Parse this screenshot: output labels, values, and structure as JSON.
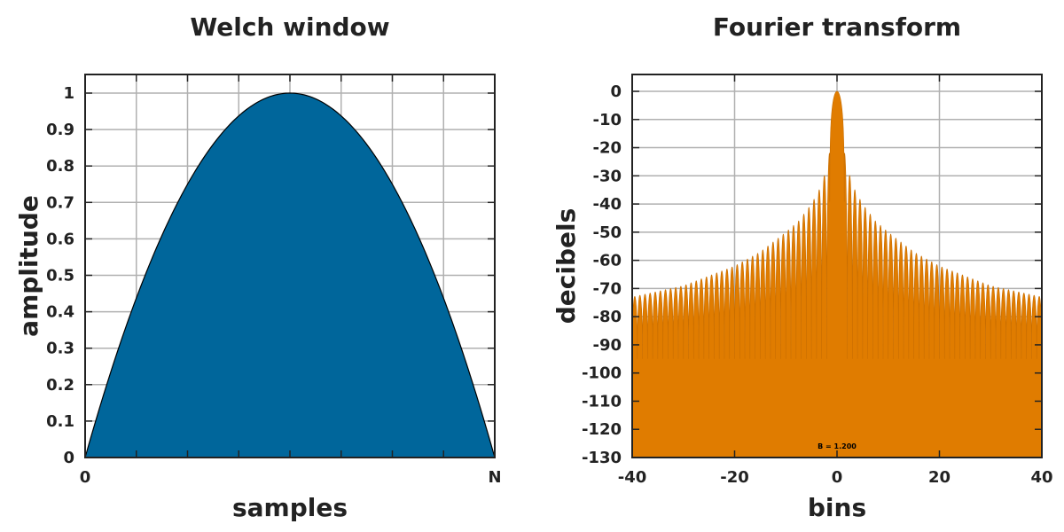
{
  "chart_data": [
    {
      "type": "area",
      "title": "Welch window",
      "xlabel": "samples",
      "ylabel": "amplitude",
      "x_range": [
        0,
        1
      ],
      "ylim": [
        0,
        1
      ],
      "grid": true,
      "x_ticks": [
        {
          "value": 0,
          "label": "0"
        },
        {
          "value": 1,
          "label": "N"
        }
      ],
      "y_ticks": [
        {
          "value": 0,
          "label": "0"
        },
        {
          "value": 0.1,
          "label": "0.1"
        },
        {
          "value": 0.2,
          "label": "0.2"
        },
        {
          "value": 0.3,
          "label": "0.3"
        },
        {
          "value": 0.4,
          "label": "0.4"
        },
        {
          "value": 0.5,
          "label": "0.5"
        },
        {
          "value": 0.6,
          "label": "0.6"
        },
        {
          "value": 0.7,
          "label": "0.7"
        },
        {
          "value": 0.8,
          "label": "0.8"
        },
        {
          "value": 0.9,
          "label": "0.9"
        },
        {
          "value": 1,
          "label": "1"
        }
      ],
      "series": [
        {
          "color": "#00669b",
          "x": [
            0,
            0.05,
            0.1,
            0.15,
            0.2,
            0.25,
            0.3,
            0.35,
            0.4,
            0.45,
            0.5,
            0.55,
            0.6,
            0.65,
            0.7,
            0.75,
            0.8,
            0.85,
            0.9,
            0.95,
            1
          ],
          "values": [
            0,
            0.19,
            0.36,
            0.51,
            0.64,
            0.75,
            0.84,
            0.91,
            0.96,
            0.99,
            1,
            0.99,
            0.96,
            0.91,
            0.84,
            0.75,
            0.64,
            0.51,
            0.36,
            0.19,
            0
          ]
        }
      ]
    },
    {
      "type": "area",
      "title": "Fourier transform",
      "xlabel": "bins",
      "ylabel": "decibels",
      "xlim": [
        -40,
        40
      ],
      "ylim": [
        -130,
        0
      ],
      "grid": true,
      "x_ticks": [
        {
          "value": -40,
          "label": "-40"
        },
        {
          "value": -20,
          "label": "-20"
        },
        {
          "value": 0,
          "label": "0"
        },
        {
          "value": 20,
          "label": "20"
        },
        {
          "value": 40,
          "label": "40"
        }
      ],
      "y_ticks": [
        {
          "value": 0,
          "label": "0"
        },
        {
          "value": -10,
          "label": "-10"
        },
        {
          "value": -20,
          "label": "-20"
        },
        {
          "value": -30,
          "label": "-30"
        },
        {
          "value": -40,
          "label": "-40"
        },
        {
          "value": -50,
          "label": "-50"
        },
        {
          "value": -60,
          "label": "-60"
        },
        {
          "value": -70,
          "label": "-70"
        },
        {
          "value": -80,
          "label": "-80"
        },
        {
          "value": -90,
          "label": "-90"
        },
        {
          "value": -100,
          "label": "-100"
        },
        {
          "value": -110,
          "label": "-110"
        },
        {
          "value": -120,
          "label": "-120"
        },
        {
          "value": -130,
          "label": "-130"
        }
      ],
      "annotation": "B = 1.200",
      "series": [
        {
          "color": "#e07c00",
          "mainlobe_peak_db": 0,
          "sidelobe_peaks": {
            "x": [
              1.5,
              2.5,
              3.5,
              5,
              7.5,
              10,
              15,
              20,
              30,
              40
            ],
            "db": [
              -22,
              -30,
              -35,
              -40,
              -46,
              -50,
              -57,
              -62,
              -69,
              -73
            ]
          },
          "null_floor_db": -95
        }
      ]
    }
  ]
}
